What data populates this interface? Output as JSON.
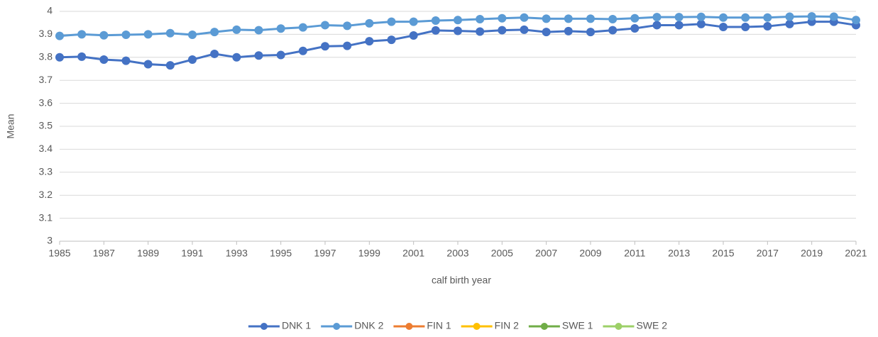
{
  "chart_data": {
    "type": "line",
    "x_label": "calf birth year",
    "y_label": "Mean",
    "x": [
      1985,
      1986,
      1987,
      1988,
      1989,
      1990,
      1991,
      1992,
      1993,
      1994,
      1995,
      1996,
      1997,
      1998,
      1999,
      2000,
      2001,
      2002,
      2003,
      2004,
      2005,
      2006,
      2007,
      2008,
      2009,
      2010,
      2011,
      2012,
      2013,
      2014,
      2015,
      2016,
      2017,
      2018,
      2019,
      2020,
      2021
    ],
    "xlim": [
      1985,
      2021
    ],
    "xticks": [
      1985,
      1987,
      1989,
      1991,
      1993,
      1995,
      1997,
      1999,
      2001,
      2003,
      2005,
      2007,
      2009,
      2011,
      2013,
      2015,
      2017,
      2019,
      2021
    ],
    "ylim": [
      3,
      4
    ],
    "yticks": [
      3,
      3.1,
      3.2,
      3.3,
      3.4,
      3.5,
      3.6,
      3.7,
      3.8,
      3.9,
      4
    ],
    "grid": true,
    "legend": "bottom",
    "series": [
      {
        "name": "DNK 1",
        "color": "#4472c4",
        "values": [
          3.8,
          3.803,
          3.79,
          3.785,
          3.77,
          3.765,
          3.79,
          3.815,
          3.8,
          3.808,
          3.81,
          3.828,
          3.848,
          3.85,
          3.87,
          3.876,
          3.895,
          3.917,
          3.915,
          3.912,
          3.918,
          3.92,
          3.91,
          3.914,
          3.91,
          3.918,
          3.926,
          3.94,
          3.94,
          3.945,
          3.932,
          3.932,
          3.935,
          3.945,
          3.955,
          3.955,
          3.94
        ]
      },
      {
        "name": "DNK 2",
        "color": "#5b9bd5",
        "values": [
          3.893,
          3.9,
          3.896,
          3.898,
          3.9,
          3.905,
          3.898,
          3.91,
          3.92,
          3.918,
          3.925,
          3.93,
          3.94,
          3.937,
          3.948,
          3.955,
          3.955,
          3.96,
          3.962,
          3.966,
          3.97,
          3.973,
          3.968,
          3.968,
          3.968,
          3.966,
          3.97,
          3.975,
          3.975,
          3.976,
          3.973,
          3.973,
          3.973,
          3.977,
          3.978,
          3.977,
          3.962
        ]
      },
      {
        "name": "FIN 1",
        "color": "#ed7d31",
        "values": [
          null,
          null,
          null,
          null,
          null,
          null,
          null,
          null,
          null,
          null,
          null,
          null,
          null,
          null,
          null,
          null,
          null,
          null,
          null,
          null,
          null,
          null,
          null,
          null,
          null,
          null,
          null,
          null,
          null,
          null,
          null,
          null,
          null,
          null,
          null,
          null,
          null
        ]
      },
      {
        "name": "FIN 2",
        "color": "#ffc000",
        "values": [
          null,
          null,
          null,
          null,
          null,
          null,
          null,
          null,
          null,
          null,
          null,
          null,
          null,
          null,
          null,
          null,
          null,
          null,
          null,
          null,
          null,
          null,
          null,
          null,
          null,
          null,
          null,
          null,
          null,
          null,
          null,
          null,
          null,
          null,
          null,
          null,
          null
        ]
      },
      {
        "name": "SWE 1",
        "color": "#70ad47",
        "values": [
          null,
          null,
          null,
          null,
          null,
          null,
          null,
          null,
          null,
          null,
          null,
          null,
          null,
          null,
          null,
          null,
          null,
          null,
          null,
          null,
          null,
          null,
          null,
          null,
          null,
          null,
          null,
          null,
          null,
          null,
          null,
          null,
          null,
          null,
          null,
          null,
          null
        ]
      },
      {
        "name": "SWE 2",
        "color": "#9dd068",
        "values": [
          null,
          null,
          null,
          null,
          null,
          null,
          null,
          null,
          null,
          null,
          null,
          null,
          null,
          null,
          null,
          null,
          null,
          null,
          null,
          null,
          null,
          null,
          null,
          null,
          null,
          null,
          null,
          null,
          null,
          null,
          null,
          null,
          null,
          null,
          null,
          null,
          null
        ]
      }
    ]
  }
}
